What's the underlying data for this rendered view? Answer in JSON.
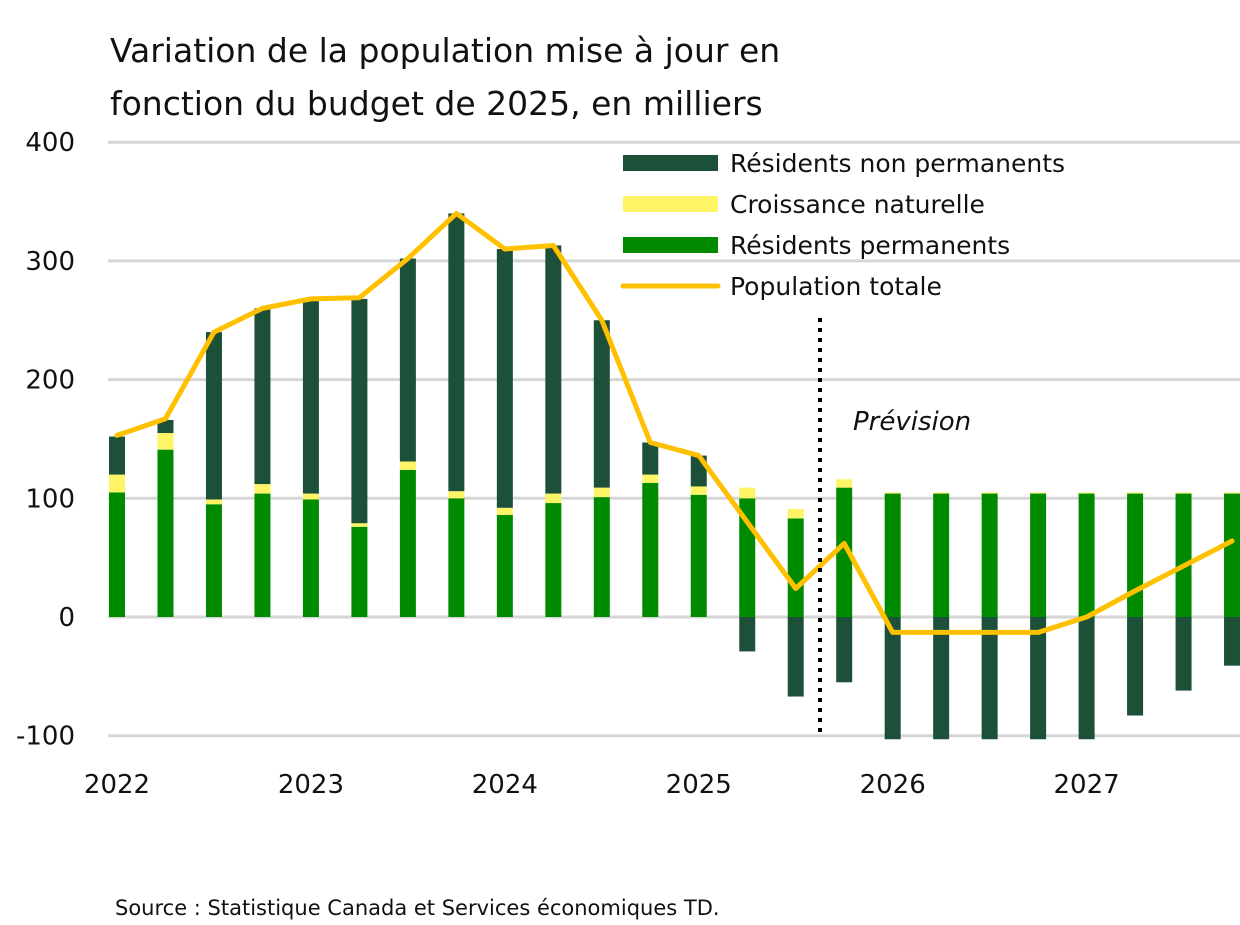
{
  "chart_data": {
    "type": "bar",
    "stacked": true,
    "title_lines": [
      "Variation de la population mise à jour en",
      "fonction du budget de 2025, en milliers"
    ],
    "xlabel": "",
    "ylabel": "",
    "ylim": [
      -103,
      400
    ],
    "yticks": [
      400,
      300,
      200,
      100,
      0,
      -100
    ],
    "grid": true,
    "legend_position": "top-right",
    "x_tick_labels": [
      "2022",
      "2023",
      "2024",
      "2025",
      "2026",
      "2027"
    ],
    "categories": [
      "2022T1",
      "2022T2",
      "2022T3",
      "2022T4",
      "2023T1",
      "2023T2",
      "2023T3",
      "2023T4",
      "2024T1",
      "2024T2",
      "2024T3",
      "2024T4",
      "2025T1",
      "2025T2",
      "2025T3",
      "2025T4",
      "2026T1",
      "2026T2",
      "2026T3",
      "2026T4",
      "2027T1",
      "2027T2",
      "2027T3",
      "2027T4"
    ],
    "series": [
      {
        "name": "Résidents non permanents",
        "kind": "bar",
        "color": "#1c5038",
        "values": [
          32,
          11,
          141,
          148,
          164,
          189,
          171,
          234,
          218,
          209,
          141,
          27,
          26,
          -29,
          -67,
          -55,
          -118,
          -118,
          -118,
          -118,
          -105,
          -83,
          -62,
          -41
        ]
      },
      {
        "name": "Croissance naturelle",
        "kind": "bar",
        "color": "#fef466",
        "values": [
          15,
          14,
          4,
          8,
          5,
          3,
          7,
          6,
          6,
          8,
          8,
          7,
          7,
          9,
          8,
          7,
          1,
          1,
          1,
          1,
          1,
          1,
          1,
          1
        ]
      },
      {
        "name": "Résidents permanents",
        "kind": "bar",
        "color": "#008a00",
        "values": [
          105,
          141,
          95,
          104,
          99,
          76,
          124,
          100,
          86,
          96,
          101,
          113,
          103,
          100,
          83,
          109,
          104,
          104,
          104,
          104,
          104,
          104,
          104,
          104
        ]
      },
      {
        "name": "Population totale",
        "kind": "line",
        "color": "#ffc000",
        "values": [
          153,
          167,
          240,
          260,
          268,
          269,
          302,
          340,
          310,
          313,
          250,
          147,
          136,
          80,
          24,
          62,
          -13,
          -13,
          -13,
          -13,
          0,
          22,
          43,
          64
        ]
      }
    ],
    "annotation": "Prévision",
    "forecast_start_between": [
      "2025T3",
      "2025T4"
    ]
  },
  "source": "Source : Statistique Canada et Services économiques TD."
}
